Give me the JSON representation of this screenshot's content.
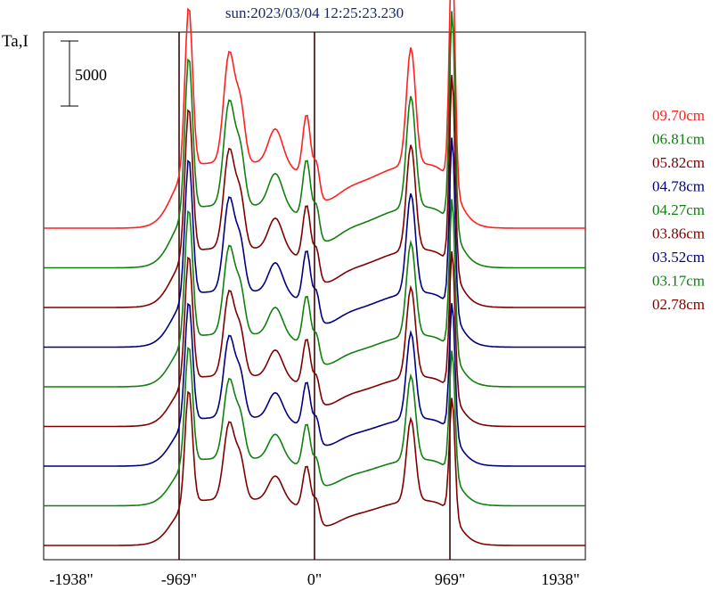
{
  "title": "sun:2023/03/04 12:25:23.230",
  "ylabel": "Ta,I",
  "scale_bar": {
    "label": "5000",
    "value": 5000
  },
  "chart_data": {
    "type": "line",
    "title": "sun:2023/03/04 12:25:23.230",
    "xlabel": "",
    "ylabel": "Ta,I",
    "xlim": [
      -1938,
      1938
    ],
    "x_ticks": [
      -1938,
      -969,
      0,
      969,
      1938
    ],
    "x_tick_labels": [
      "-1938\"",
      "-969\"",
      "0\"",
      "969\"",
      "1938\""
    ],
    "vertical_lines": [
      -969,
      0,
      969
    ],
    "stacked_offset_note": "",
    "series": [
      {
        "name": "09.70cm",
        "color": "#ff2020",
        "amplitude": 1.0,
        "offset_index": 8
      },
      {
        "name": "06.81cm",
        "color": "#108010",
        "amplitude": 0.95,
        "offset_index": 7
      },
      {
        "name": "05.82cm",
        "color": "#800000",
        "amplitude": 0.9,
        "offset_index": 6
      },
      {
        "name": "04.78cm",
        "color": "#000080",
        "amplitude": 0.85,
        "offset_index": 5
      },
      {
        "name": "04.27cm",
        "color": "#108010",
        "amplitude": 0.8,
        "offset_index": 4
      },
      {
        "name": "03.86cm",
        "color": "#800000",
        "amplitude": 0.77,
        "offset_index": 3
      },
      {
        "name": "03.52cm",
        "color": "#000080",
        "amplitude": 0.74,
        "offset_index": 2
      },
      {
        "name": "03.17cm",
        "color": "#108010",
        "amplitude": 0.72,
        "offset_index": 1
      },
      {
        "name": "02.78cm",
        "color": "#800000",
        "amplitude": 0.7,
        "offset_index": 0
      }
    ]
  }
}
